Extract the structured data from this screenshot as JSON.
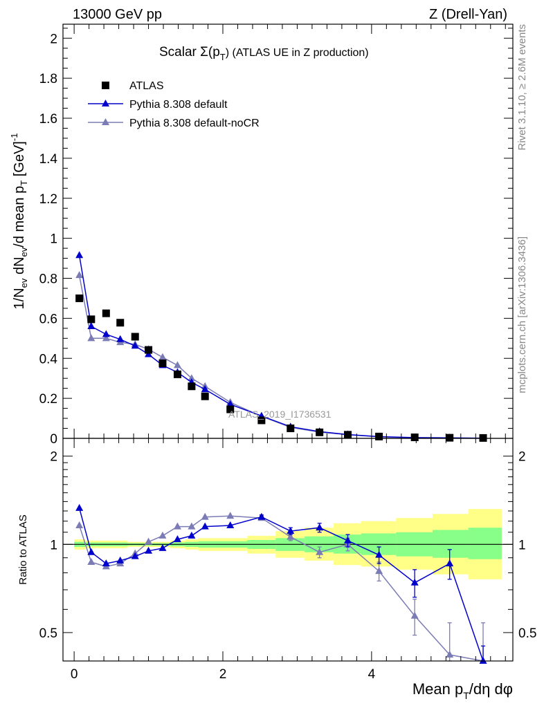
{
  "header": {
    "left": "13000 GeV pp",
    "right": "Z (Drell-Yan)"
  },
  "side_labels": {
    "rivet": "Rivet 3.1.10, ≥ 2.6M events",
    "mcplots": "mcplots.cern.ch [arXiv:1306.3436]"
  },
  "colors": {
    "data": "#000000",
    "default": "#0000cc",
    "nocr": "#7b7bb5",
    "band_yellow": "#ffff88",
    "band_green": "#88ff88"
  },
  "chart_data": [
    {
      "type": "scatter",
      "panel": "main",
      "title_prefix": "Scalar Σ(p",
      "title_sub": "T",
      "title_suffix": ") (ATLAS UE in Z production)",
      "watermark": "ATLAS_2019_I1736531",
      "ylabel": "1/N_ev dN_ev/d mean p_T [GeV]^-1",
      "xlim": [
        -0.15,
        5.9
      ],
      "ylim": [
        0,
        2.07
      ],
      "yticks": [
        0,
        0.2,
        0.4,
        0.6,
        0.8,
        1,
        1.2,
        1.4,
        1.6,
        1.8,
        2
      ],
      "ytick_labels": [
        "0",
        "0.2",
        "0.4",
        "0.6",
        "0.8",
        "1",
        "1.2",
        "1.4",
        "1.6",
        "1.8",
        "2"
      ],
      "legend": [
        "ATLAS",
        "Pythia 8.308 default",
        "Pythia 8.308 default-noCR"
      ],
      "series": [
        {
          "name": "ATLAS",
          "x": [
            0.07,
            0.23,
            0.43,
            0.62,
            0.82,
            1.0,
            1.19,
            1.39,
            1.58,
            1.76,
            2.1,
            2.52,
            2.91,
            3.3,
            3.68,
            4.1,
            4.58,
            5.05,
            5.5
          ],
          "values": [
            0.7,
            0.595,
            0.625,
            0.578,
            0.508,
            0.442,
            0.375,
            0.32,
            0.26,
            0.21,
            0.145,
            0.09,
            0.05,
            0.03,
            0.018,
            0.009,
            0.005,
            0.003,
            0.002
          ]
        },
        {
          "name": "Pythia 8.308 default",
          "x": [
            0.07,
            0.23,
            0.43,
            0.62,
            0.82,
            1.0,
            1.19,
            1.39,
            1.58,
            1.76,
            2.1,
            2.52,
            2.91,
            3.3,
            3.68,
            4.1,
            4.58,
            5.05,
            5.5
          ],
          "values": [
            0.915,
            0.56,
            0.52,
            0.495,
            0.462,
            0.42,
            0.365,
            0.33,
            0.28,
            0.245,
            0.17,
            0.112,
            0.058,
            0.034,
            0.019,
            0.0085,
            0.0038,
            0.0026,
            0.0008
          ]
        },
        {
          "name": "Pythia 8.308 default-noCR",
          "x": [
            0.07,
            0.23,
            0.43,
            0.62,
            0.82,
            1.0,
            1.19,
            1.39,
            1.58,
            1.76,
            2.1,
            2.52,
            2.91,
            3.3,
            3.68,
            4.1,
            4.58,
            5.05,
            5.5
          ],
          "values": [
            0.815,
            0.5,
            0.5,
            0.48,
            0.47,
            0.445,
            0.405,
            0.365,
            0.3,
            0.26,
            0.18,
            0.11,
            0.055,
            0.031,
            0.018,
            0.0075,
            0.0029,
            0.0012,
            0.0008
          ]
        }
      ]
    },
    {
      "type": "scatter",
      "panel": "ratio",
      "ylabel": "Ratio to ATLAS",
      "xlabel": "Mean p_T/dη dφ",
      "xlim": [
        -0.15,
        5.9
      ],
      "ylim": [
        0.4,
        2.3
      ],
      "yscale": "log",
      "yticks": [
        0.5,
        1,
        2
      ],
      "ytick_labels": [
        "0.5",
        "1",
        "2"
      ],
      "xticks": [
        0,
        2,
        4
      ],
      "xtick_labels": [
        "0",
        "2",
        "4"
      ],
      "bands": {
        "edges": [
          0,
          0.15,
          0.32,
          0.52,
          0.72,
          0.92,
          1.1,
          1.29,
          1.49,
          1.67,
          1.86,
          2.33,
          2.71,
          3.1,
          3.49,
          3.86,
          4.33,
          4.82,
          5.3,
          5.75
        ],
        "yellow_lo": [
          0.96,
          0.97,
          0.97,
          0.97,
          0.98,
          0.98,
          0.98,
          0.97,
          0.96,
          0.95,
          0.95,
          0.93,
          0.9,
          0.88,
          0.85,
          0.84,
          0.82,
          0.79,
          0.76
        ],
        "yellow_hi": [
          1.04,
          1.03,
          1.03,
          1.03,
          1.02,
          1.02,
          1.02,
          1.03,
          1.04,
          1.05,
          1.05,
          1.07,
          1.11,
          1.14,
          1.18,
          1.2,
          1.23,
          1.27,
          1.32
        ],
        "green_lo": [
          0.98,
          0.985,
          0.985,
          0.985,
          0.99,
          0.99,
          0.99,
          0.985,
          0.98,
          0.975,
          0.975,
          0.965,
          0.95,
          0.94,
          0.93,
          0.92,
          0.91,
          0.9,
          0.89
        ],
        "green_hi": [
          1.02,
          1.015,
          1.015,
          1.015,
          1.01,
          1.01,
          1.01,
          1.015,
          1.02,
          1.025,
          1.025,
          1.035,
          1.05,
          1.065,
          1.08,
          1.09,
          1.1,
          1.12,
          1.14
        ]
      },
      "series": [
        {
          "name": "Pythia 8.308 default",
          "x": [
            0.07,
            0.23,
            0.43,
            0.62,
            0.82,
            1.0,
            1.19,
            1.39,
            1.58,
            1.76,
            2.1,
            2.52,
            2.91,
            3.3,
            3.68,
            4.1,
            4.58,
            5.05,
            5.5
          ],
          "values": [
            1.33,
            0.94,
            0.86,
            0.88,
            0.91,
            0.95,
            0.97,
            1.04,
            1.07,
            1.15,
            1.16,
            1.24,
            1.11,
            1.14,
            1.03,
            0.92,
            0.74,
            0.86,
            0.37
          ],
          "err": [
            0.01,
            0.01,
            0.01,
            0.01,
            0.01,
            0.01,
            0.01,
            0.01,
            0.01,
            0.01,
            0.015,
            0.02,
            0.03,
            0.04,
            0.05,
            0.06,
            0.08,
            0.1,
            0.08
          ]
        },
        {
          "name": "Pythia 8.308 default-noCR",
          "x": [
            0.07,
            0.23,
            0.43,
            0.62,
            0.82,
            1.0,
            1.19,
            1.39,
            1.58,
            1.76,
            2.1,
            2.52,
            2.91,
            3.3,
            3.68,
            4.1,
            4.58,
            5.05,
            5.5
          ],
          "values": [
            1.16,
            0.87,
            0.84,
            0.86,
            0.93,
            1.02,
            1.07,
            1.15,
            1.15,
            1.24,
            1.25,
            1.23,
            1.06,
            0.94,
            1.0,
            0.81,
            0.57,
            0.42,
            0.39
          ],
          "err": [
            0.01,
            0.01,
            0.01,
            0.01,
            0.01,
            0.01,
            0.01,
            0.01,
            0.01,
            0.01,
            0.015,
            0.02,
            0.03,
            0.04,
            0.05,
            0.06,
            0.08,
            0.12,
            0.15
          ]
        }
      ]
    }
  ]
}
